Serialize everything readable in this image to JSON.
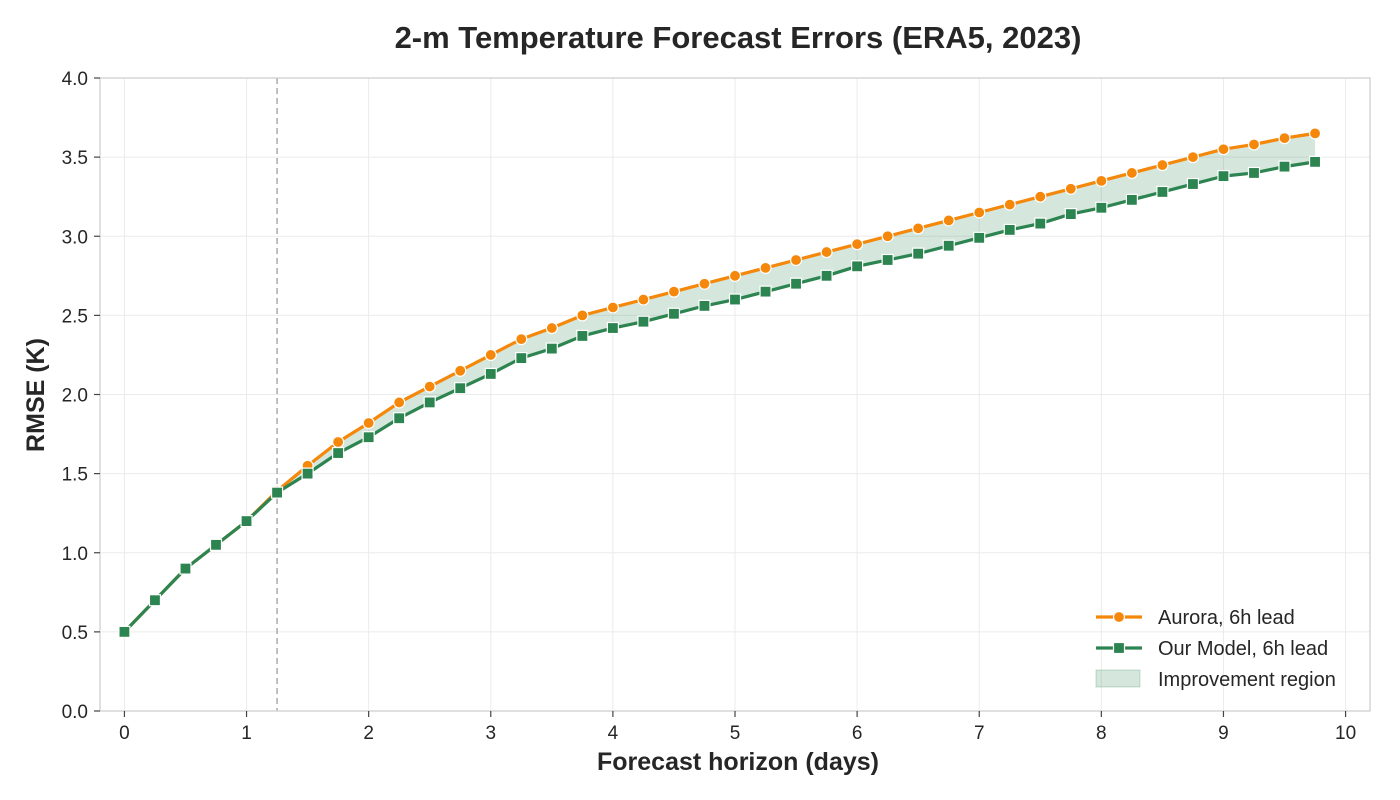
{
  "colors": {
    "aurora": "#f5870a",
    "our_model": "#2c8450",
    "improvement_fill": "#2c8450",
    "reference_line": "#b0b0b0"
  },
  "chart_data": {
    "type": "line",
    "title": "2-m Temperature Forecast Errors (ERA5, 2023)",
    "xlabel": "Forecast horizon (days)",
    "ylabel": "RMSE (K)",
    "xlim": [
      -0.2,
      10.2
    ],
    "ylim": [
      0.0,
      4.0
    ],
    "xticks": [
      0,
      1,
      2,
      3,
      4,
      5,
      6,
      7,
      8,
      9,
      10
    ],
    "xtick_labels": [
      "0",
      "1",
      "2",
      "3",
      "4",
      "5",
      "6",
      "7",
      "8",
      "9",
      "10"
    ],
    "yticks": [
      0.0,
      0.5,
      1.0,
      1.5,
      2.0,
      2.5,
      3.0,
      3.5,
      4.0
    ],
    "ytick_labels": [
      "0.0",
      "0.5",
      "1.0",
      "1.5",
      "2.0",
      "2.5",
      "3.0",
      "3.5",
      "4.0"
    ],
    "grid": true,
    "reference_line_x": 1.25,
    "legend_position": "bottom-right",
    "x": [
      0,
      0.25,
      0.5,
      0.75,
      1.0,
      1.25,
      1.5,
      1.75,
      2.0,
      2.25,
      2.5,
      2.75,
      3.0,
      3.25,
      3.5,
      3.75,
      4.0,
      4.25,
      4.5,
      4.75,
      5.0,
      5.25,
      5.5,
      5.75,
      6.0,
      6.25,
      6.5,
      6.75,
      7.0,
      7.25,
      7.5,
      7.75,
      8.0,
      8.25,
      8.5,
      8.75,
      9.0,
      9.25,
      9.5,
      9.75
    ],
    "series": [
      {
        "name": "Aurora, 6h lead",
        "marker": "circle",
        "values": [
          0.5,
          0.7,
          0.9,
          1.05,
          1.2,
          1.39,
          1.55,
          1.7,
          1.82,
          1.95,
          2.05,
          2.15,
          2.25,
          2.35,
          2.42,
          2.5,
          2.55,
          2.6,
          2.65,
          2.7,
          2.75,
          2.8,
          2.85,
          2.9,
          2.95,
          3.0,
          3.05,
          3.1,
          3.15,
          3.2,
          3.25,
          3.3,
          3.35,
          3.4,
          3.45,
          3.5,
          3.55,
          3.58,
          3.62,
          3.65
        ]
      },
      {
        "name": "Our Model, 6h lead",
        "marker": "square",
        "values": [
          0.5,
          0.7,
          0.9,
          1.05,
          1.2,
          1.38,
          1.5,
          1.63,
          1.73,
          1.85,
          1.95,
          2.04,
          2.13,
          2.23,
          2.29,
          2.37,
          2.42,
          2.46,
          2.51,
          2.56,
          2.6,
          2.65,
          2.7,
          2.75,
          2.81,
          2.85,
          2.89,
          2.94,
          2.99,
          3.04,
          3.08,
          3.14,
          3.18,
          3.23,
          3.28,
          3.33,
          3.38,
          3.4,
          3.44,
          3.47
        ]
      }
    ],
    "fill_between": {
      "name": "Improvement region",
      "between": [
        "Aurora, 6h lead",
        "Our Model, 6h lead"
      ]
    }
  }
}
